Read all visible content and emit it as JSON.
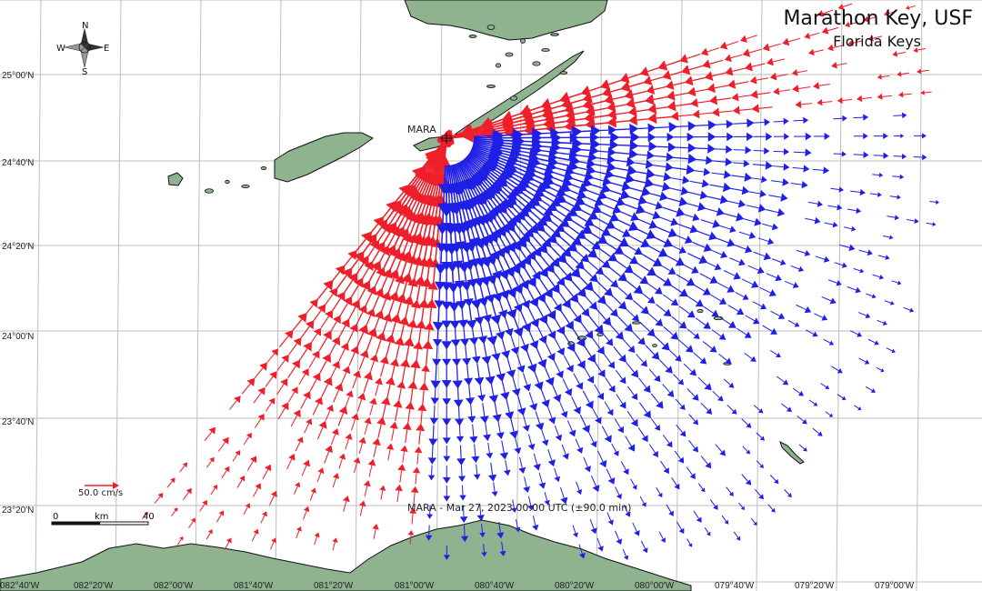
{
  "map": {
    "title": "Marathon Key, USF",
    "subtitle": "Florida Keys",
    "station_label": "MARA",
    "timestamp_label": "MARA - Mar 27, 2023 00:00 UTC (±90.0 min)",
    "compass": {
      "north": "N",
      "south": "S",
      "east": "E",
      "west": "W"
    },
    "lat_labels": [
      "25°00'N",
      "24°40'N",
      "24°20'N",
      "24°00'N",
      "23°40'N",
      "23°20'N"
    ],
    "lon_labels": [
      "082°40'W",
      "082°20'W",
      "082°00'W",
      "081°40'W",
      "081°20'W",
      "081°00'W",
      "080°40'W",
      "080°20'W",
      "080°00'W",
      "079°40'W",
      "079°20'W",
      "079°00'W"
    ],
    "scale_bar": {
      "start": "0",
      "unit": "km",
      "end": "40"
    },
    "vector_scale_label": "50.0 cm/s",
    "colors": {
      "toward": "#1f1fe6",
      "away": "#ee1f2a",
      "land": "#8fb28f",
      "grid": "#bbbbbb"
    }
  }
}
